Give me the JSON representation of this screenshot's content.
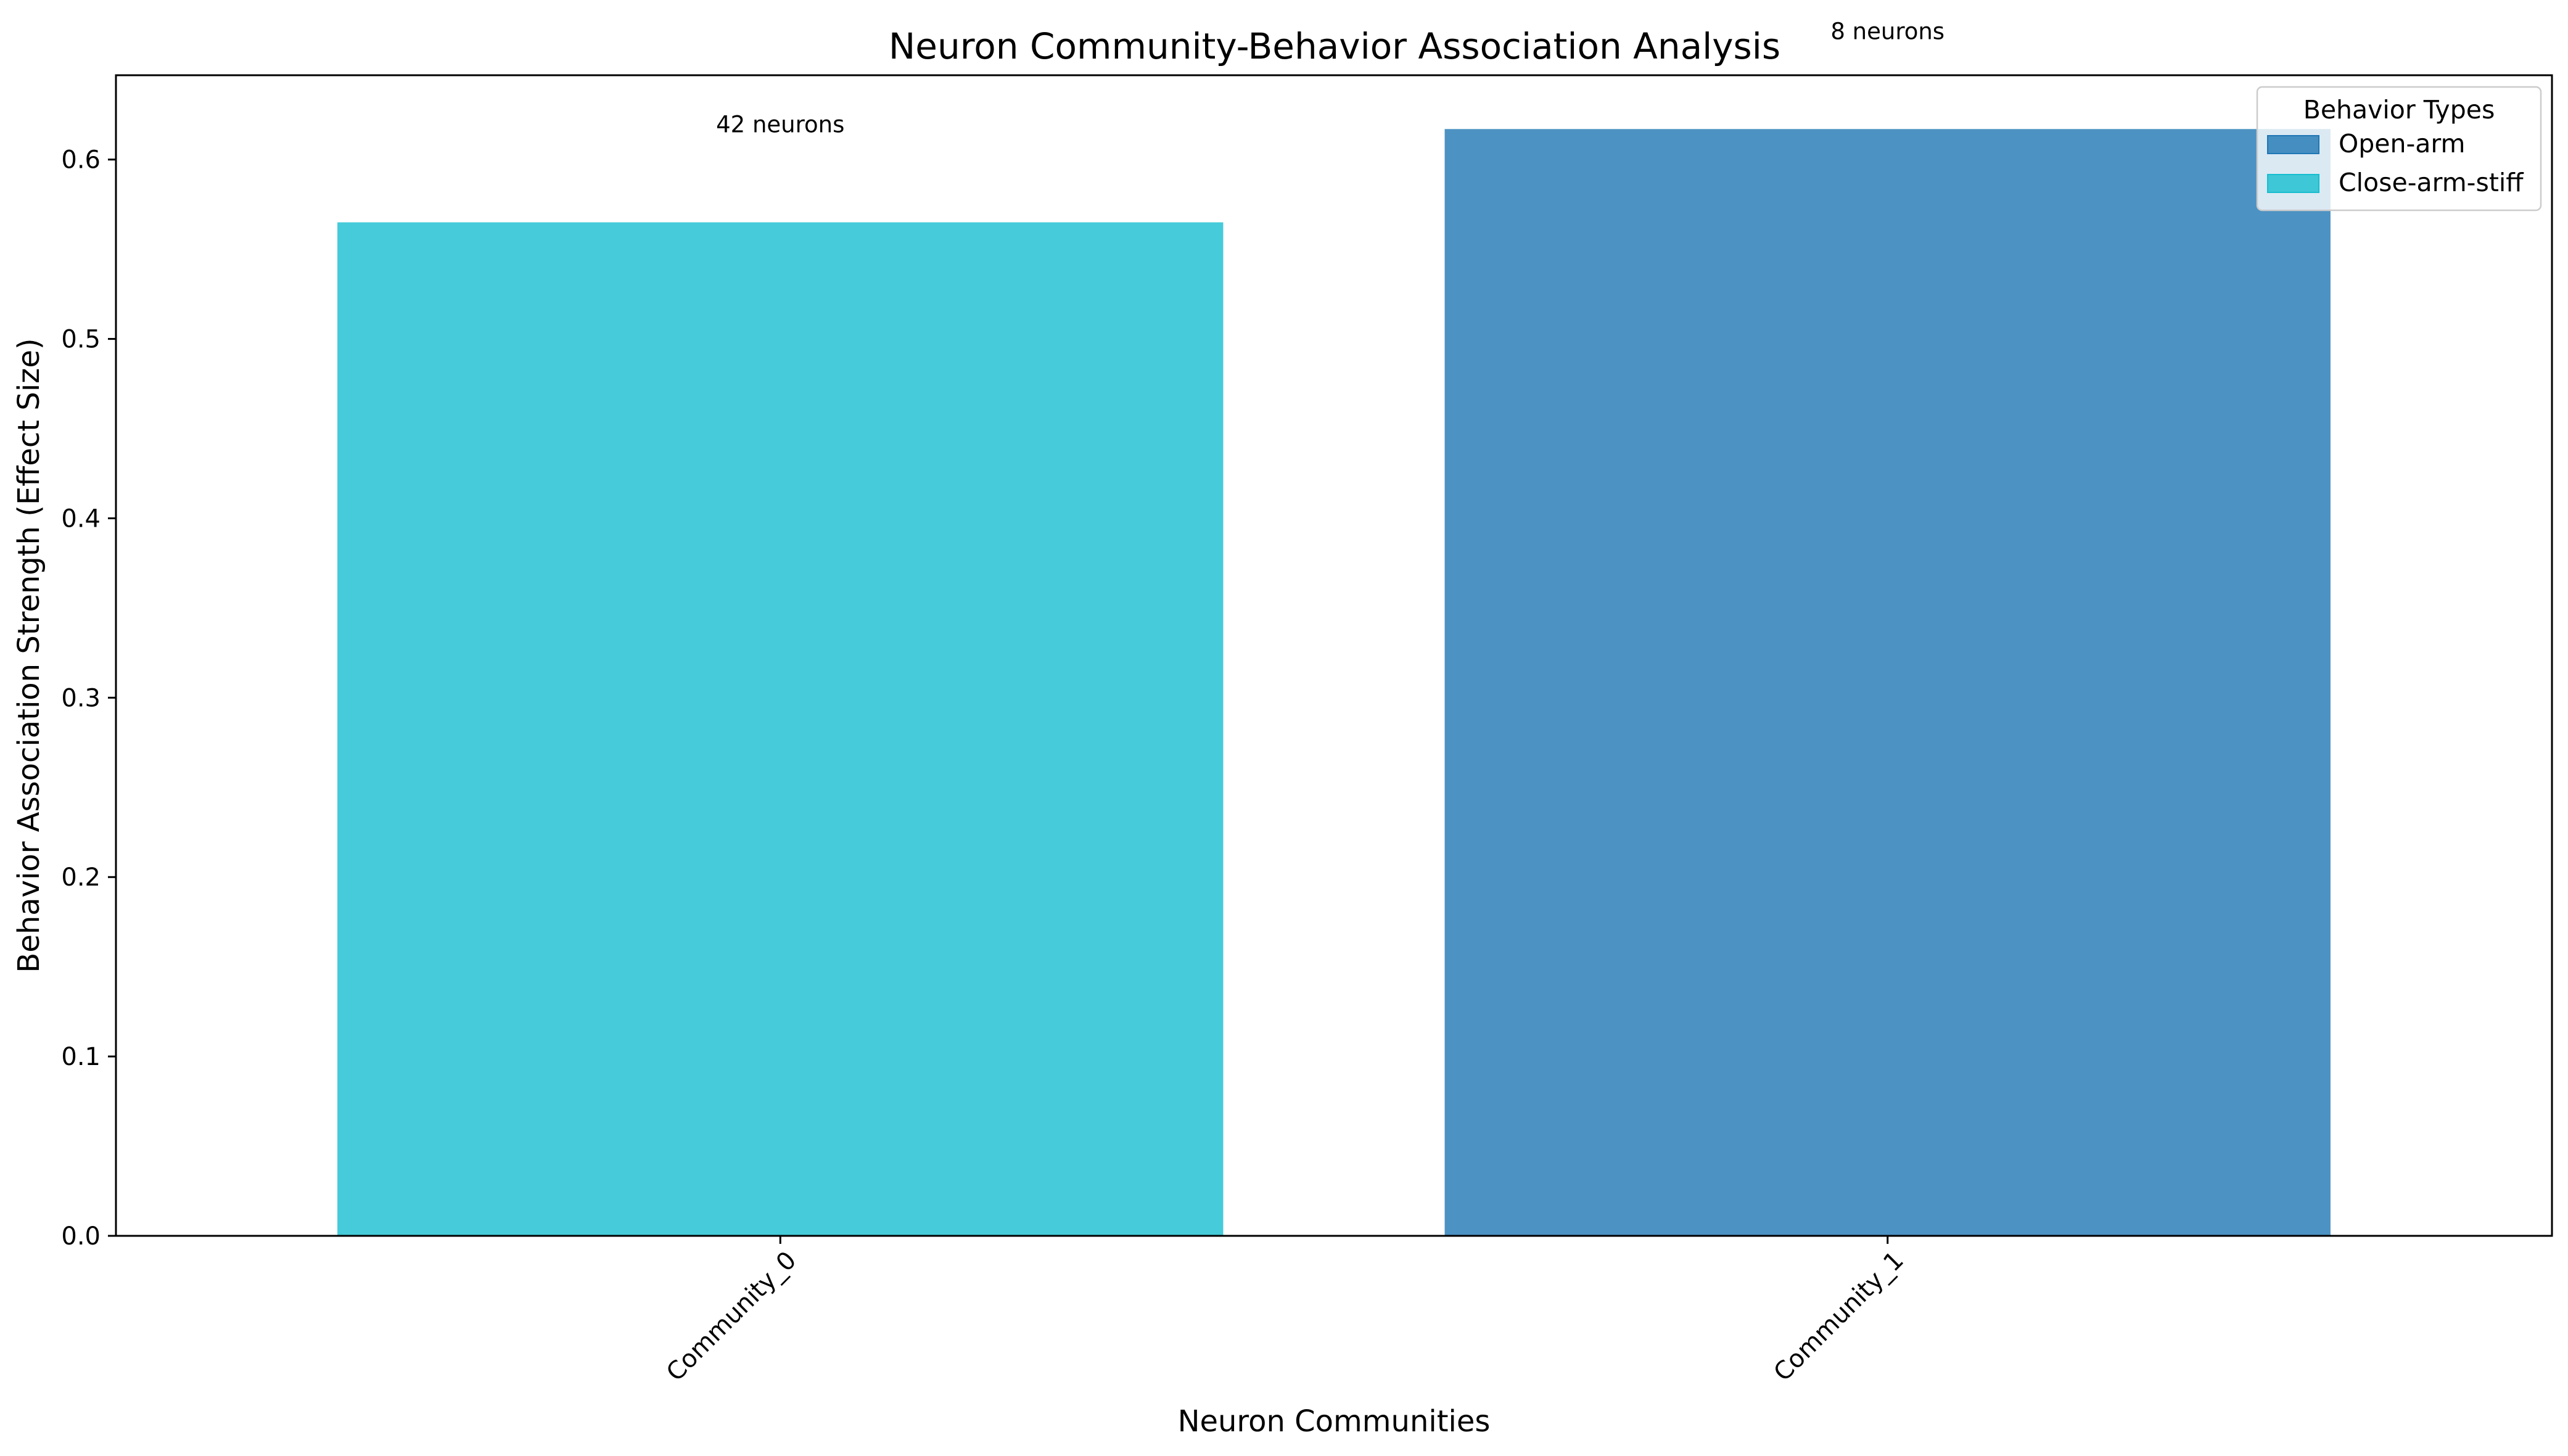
{
  "chart_data": {
    "type": "bar",
    "title": "Neuron Community-Behavior Association Analysis",
    "xlabel": "Neuron Communities",
    "ylabel": "Behavior Association Strength (Effect Size)",
    "categories": [
      "Community_0",
      "Community_1"
    ],
    "values": [
      0.565,
      0.617
    ],
    "bar_behavior": [
      "Close-arm-stiff",
      "Open-arm"
    ],
    "bar_labels": [
      "42 neurons",
      "8 neurons"
    ],
    "ylim": [
      0,
      0.647
    ],
    "yticks": [
      0.0,
      0.1,
      0.2,
      0.3,
      0.4,
      0.5,
      0.6
    ],
    "ytick_labels": [
      "0.0",
      "0.1",
      "0.2",
      "0.3",
      "0.4",
      "0.5",
      "0.6"
    ],
    "grid": false,
    "legend": {
      "title": "Behavior Types",
      "placement": "top-right",
      "entries": [
        {
          "label": "Open-arm",
          "color": "#1f77b4"
        },
        {
          "label": "Close-arm-stiff",
          "color": "#17becf"
        }
      ]
    }
  }
}
